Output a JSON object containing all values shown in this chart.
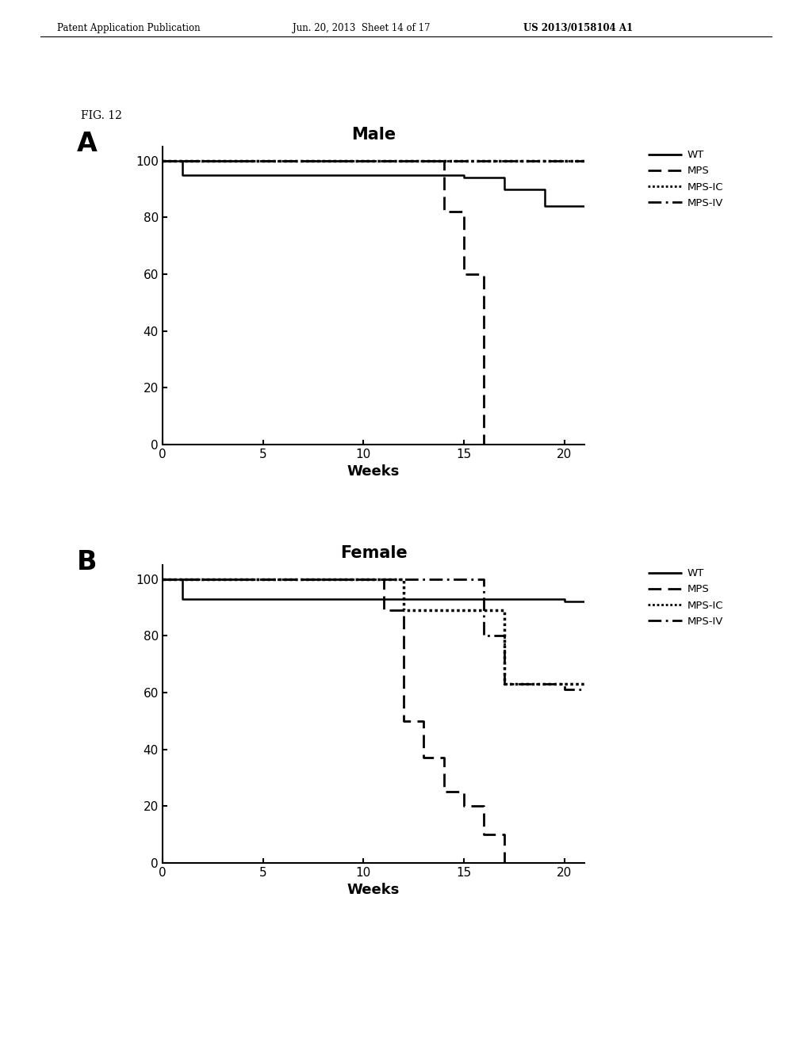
{
  "panel_A": {
    "title": "Male",
    "xlabel": "Weeks",
    "ylim": [
      0,
      105
    ],
    "xlim": [
      0,
      21
    ],
    "yticks": [
      0,
      20,
      40,
      60,
      80,
      100
    ],
    "xticks": [
      0,
      5,
      10,
      15,
      20
    ],
    "curves": {
      "WT": {
        "x": [
          0,
          1,
          1,
          15,
          15,
          17,
          17,
          19,
          19,
          21
        ],
        "y": [
          100,
          100,
          95,
          95,
          94,
          94,
          90,
          90,
          84,
          84
        ],
        "linestyle": "solid",
        "linewidth": 1.8
      },
      "MPS": {
        "x": [
          0,
          14,
          14,
          15,
          15,
          16,
          16
        ],
        "y": [
          100,
          100,
          82,
          82,
          60,
          60,
          0
        ],
        "linestyle": "dashed",
        "linewidth": 2.0
      },
      "MPS-IC": {
        "x": [
          0,
          21
        ],
        "y": [
          100,
          100
        ],
        "linestyle": "densely_dotted",
        "linewidth": 2.5
      },
      "MPS-IV": {
        "x": [
          0,
          21
        ],
        "y": [
          100,
          100
        ],
        "linestyle": "dashdot",
        "linewidth": 2.0
      }
    }
  },
  "panel_B": {
    "title": "Female",
    "xlabel": "Weeks",
    "ylim": [
      0,
      105
    ],
    "xlim": [
      0,
      21
    ],
    "yticks": [
      0,
      20,
      40,
      60,
      80,
      100
    ],
    "xticks": [
      0,
      5,
      10,
      15,
      20
    ],
    "curves": {
      "WT": {
        "x": [
          0,
          1,
          1,
          20,
          20,
          21
        ],
        "y": [
          100,
          100,
          93,
          93,
          92,
          92
        ],
        "linestyle": "solid",
        "linewidth": 1.8
      },
      "MPS": {
        "x": [
          0,
          11,
          11,
          12,
          12,
          13,
          13,
          14,
          14,
          15,
          15,
          16,
          16,
          17,
          17
        ],
        "y": [
          100,
          100,
          89,
          89,
          50,
          50,
          37,
          37,
          25,
          25,
          20,
          20,
          10,
          10,
          0
        ],
        "linestyle": "dashed",
        "linewidth": 2.0
      },
      "MPS-IC": {
        "x": [
          0,
          12,
          12,
          17,
          17,
          21
        ],
        "y": [
          100,
          100,
          89,
          89,
          63,
          63
        ],
        "linestyle": "densely_dotted",
        "linewidth": 2.5
      },
      "MPS-IV": {
        "x": [
          0,
          16,
          16,
          17,
          17,
          20,
          20,
          21
        ],
        "y": [
          100,
          100,
          80,
          80,
          63,
          63,
          61,
          61
        ],
        "linestyle": "dashdot",
        "linewidth": 2.0
      }
    }
  },
  "legend_labels_A": [
    "WT",
    "MPS",
    "MPS-IC",
    "MPS-IV"
  ],
  "legend_linestyles_A": [
    "solid",
    "dashed",
    "densely_dotted",
    "dashdot"
  ],
  "legend_labels_B": [
    "WT",
    "MPS",
    "MPS-IC",
    "MPS-IV"
  ],
  "legend_linestyles_B": [
    "solid",
    "dashed",
    "densely_dotted",
    "dashdot"
  ],
  "background_color": "#ffffff",
  "line_color": "#000000",
  "fig_label_A": "A",
  "fig_label_B": "B",
  "fig_label": "FIG. 12",
  "header_left": "Patent Application Publication",
  "header_mid": "Jun. 20, 2013  Sheet 14 of 17",
  "header_right": "US 2013/0158104 A1"
}
